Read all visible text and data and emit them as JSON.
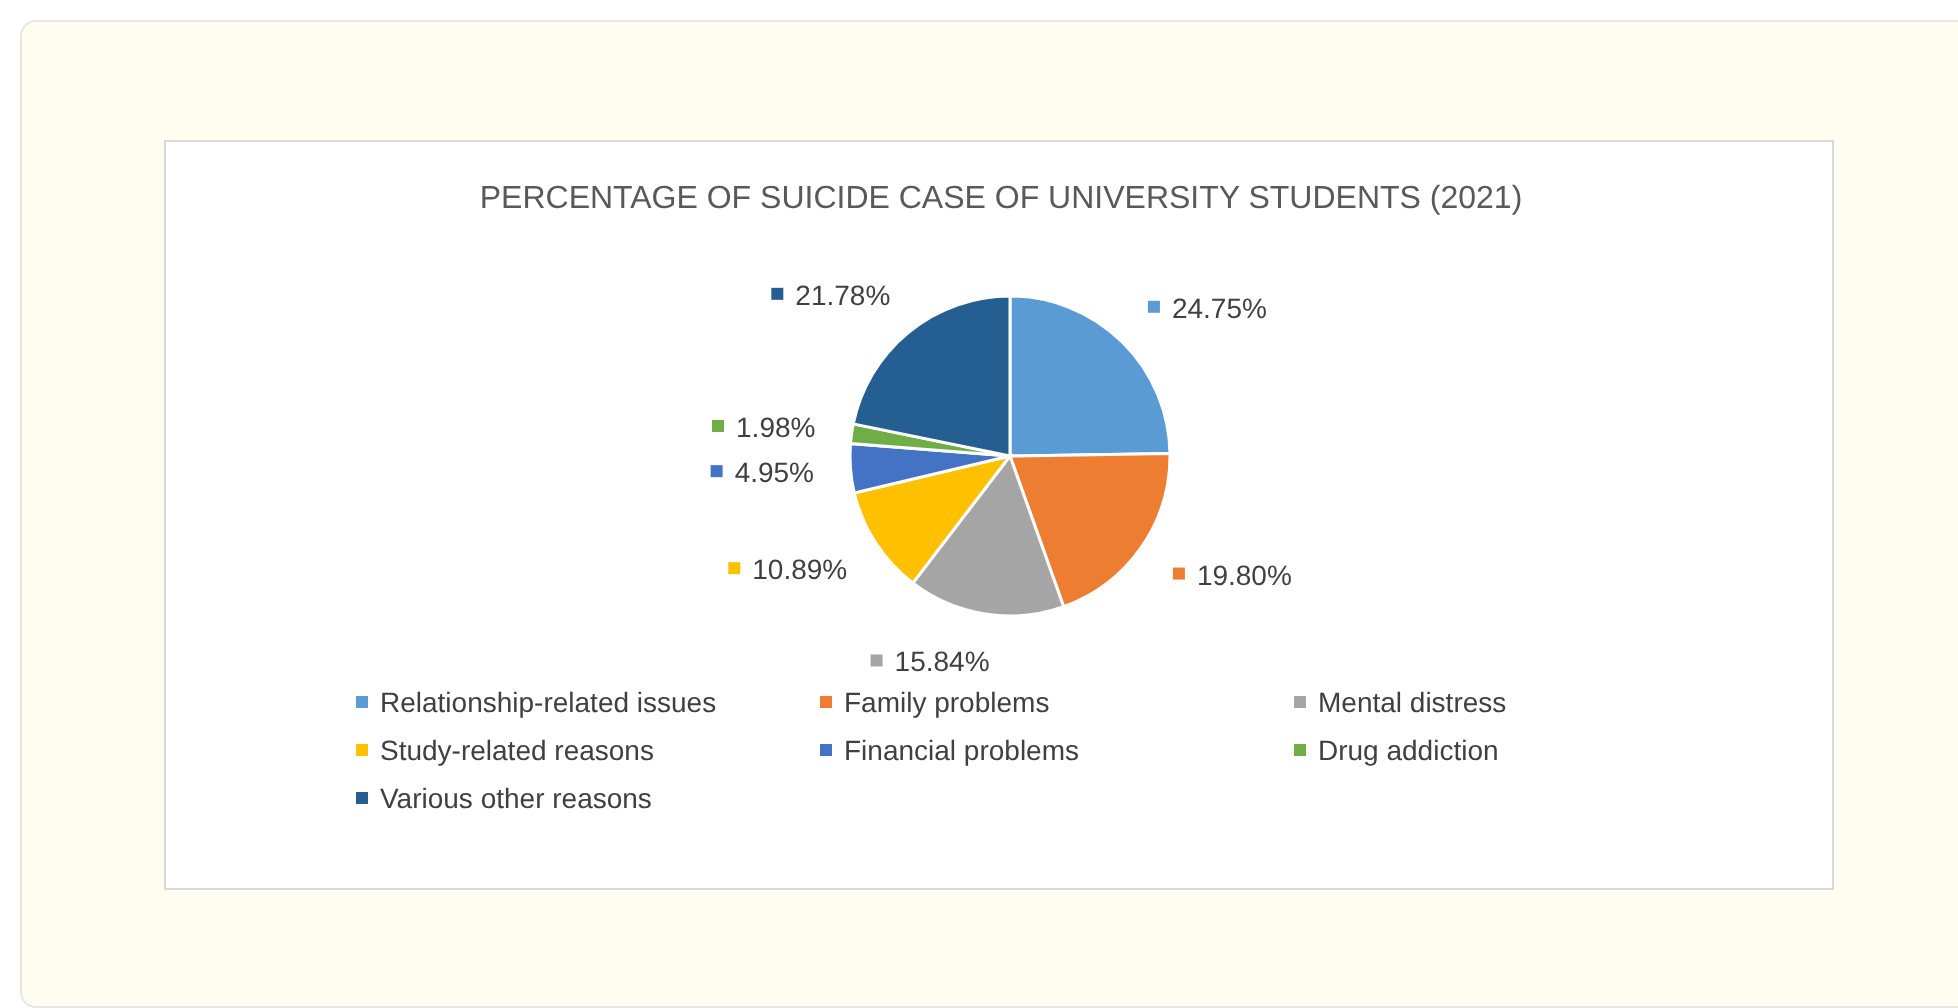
{
  "chart_data": {
    "type": "pie",
    "title": "PERCENTAGE OF SUICIDE CASE OF UNIVERSITY STUDENTS (2021)",
    "categories": [
      "Relationship-related issues",
      "Family problems",
      "Mental distress",
      "Study-related reasons",
      "Financial problems",
      "Drug addiction",
      "Various other reasons"
    ],
    "values": [
      24.75,
      19.8,
      15.84,
      10.89,
      4.95,
      1.98,
      21.78
    ],
    "colors": [
      "#5b9bd5",
      "#ed7d31",
      "#a5a5a5",
      "#ffc000",
      "#4472c4",
      "#70ad47",
      "#255e91"
    ],
    "value_labels": [
      "24.75%",
      "19.80%",
      "15.84%",
      "10.89%",
      "4.95%",
      "1.98%",
      "21.78%"
    ],
    "legend": "bottom"
  }
}
